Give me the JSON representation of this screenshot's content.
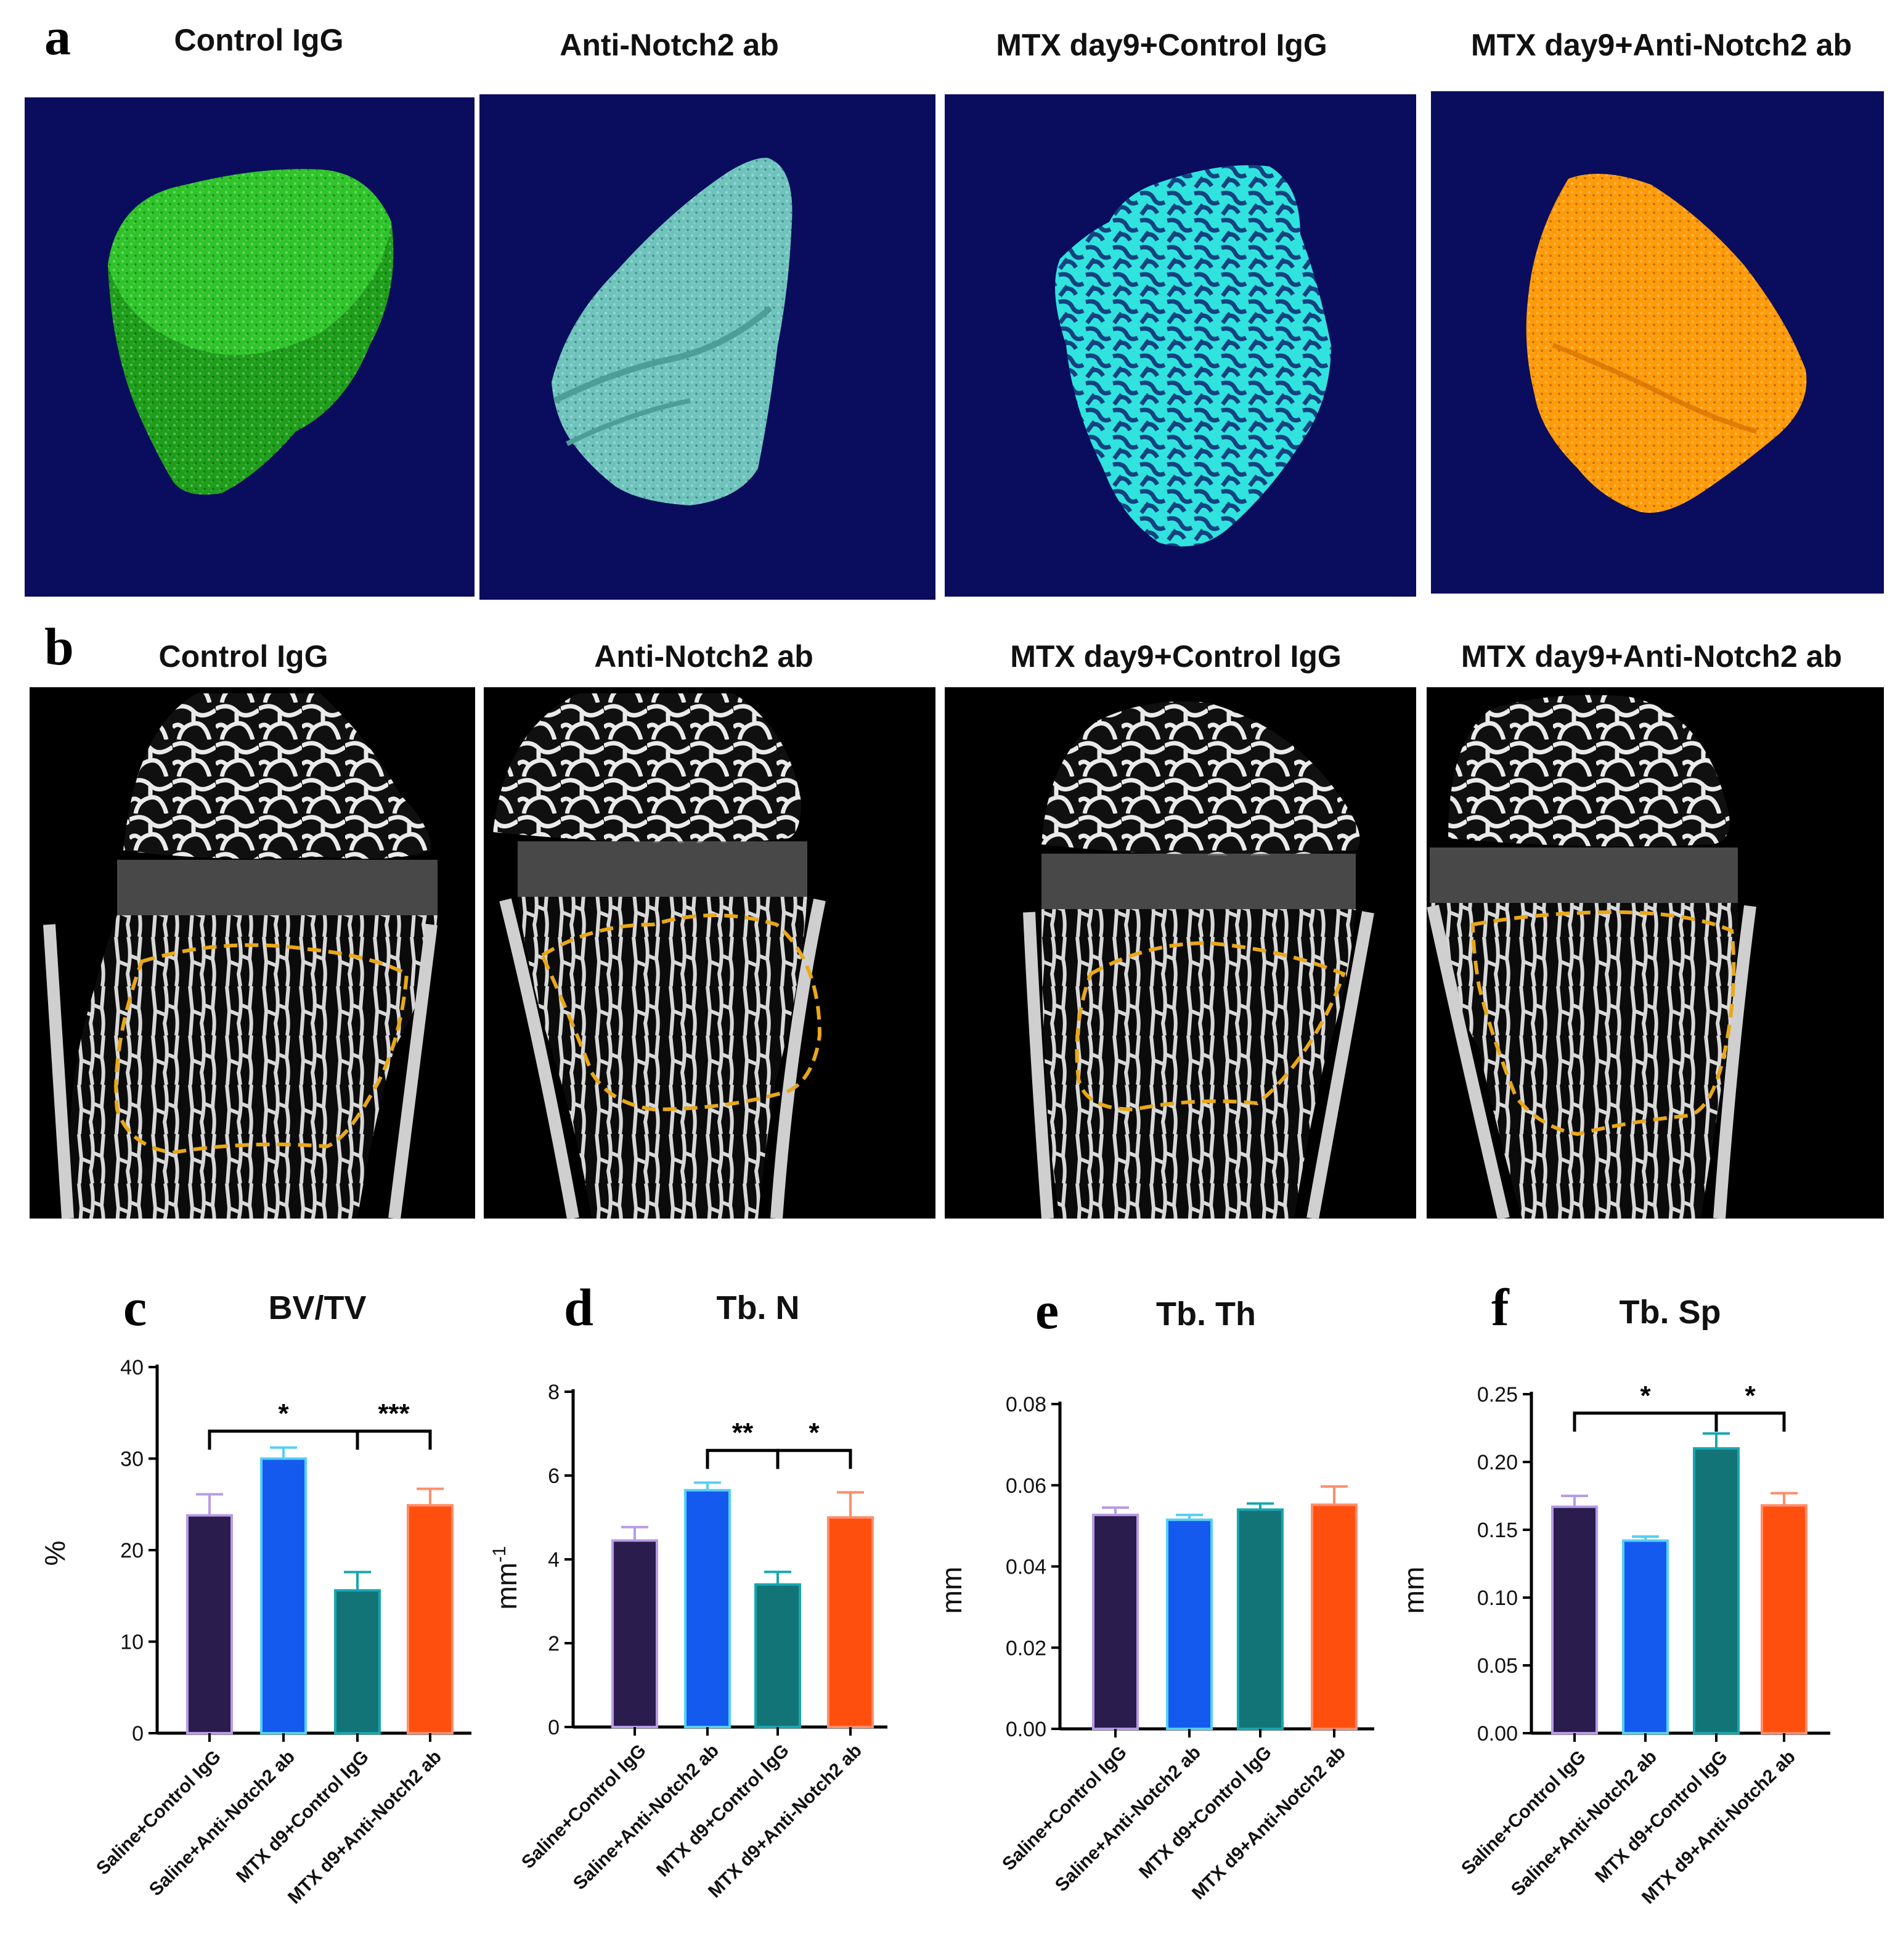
{
  "panel_a": {
    "letter": "a",
    "columns": [
      {
        "title": "Control IgG",
        "render_color": "#22b01e"
      },
      {
        "title": "Anti-Notch2 ab",
        "render_color": "#6cc6c0"
      },
      {
        "title": "MTX day9+Control IgG",
        "render_color": "#33e6e2"
      },
      {
        "title": "MTX day9+Anti-Notch2 ab",
        "render_color": "#ff9d0a"
      }
    ],
    "background": "#0a0c5e"
  },
  "panel_b": {
    "letter": "b",
    "columns": [
      {
        "title": "Control IgG"
      },
      {
        "title": "Anti-Notch2 ab"
      },
      {
        "title": "MTX day9+Control IgG"
      },
      {
        "title": "MTX day9+Anti-Notch2 ab"
      }
    ],
    "roi_color": "#e8a817"
  },
  "bar_colors": [
    "#2a1c4d",
    "#155aee",
    "#127477",
    "#ff4f0f"
  ],
  "error_colors": [
    "#b79be6",
    "#55cff5",
    "#17a6b0",
    "#ff8d6b"
  ],
  "chart_data": [
    {
      "letter": "c",
      "type": "bar",
      "title": "BV/TV",
      "ylabel": "%",
      "ylim": [
        0,
        40
      ],
      "yticks": [
        "0",
        "10",
        "20",
        "30",
        "40"
      ],
      "ytick_values": [
        0,
        10,
        20,
        30,
        40
      ],
      "categories": [
        "Saline+Control IgG",
        "Saline+Anti-Notch2 ab",
        "MTX d9+Control IgG",
        "MTX d9+Anti-Notch2 ab"
      ],
      "values": [
        23.8,
        30.0,
        15.6,
        24.9
      ],
      "errors": [
        2.3,
        1.2,
        2.0,
        1.8
      ],
      "significance": [
        {
          "from": 0,
          "to": 2,
          "label": "*",
          "y": 33
        },
        {
          "from": 2,
          "to": 3,
          "label": "***",
          "y": 33
        }
      ]
    },
    {
      "letter": "d",
      "type": "bar",
      "title": "Tb. N",
      "ylabel": "mm",
      "ylabel_sup": "-1",
      "ylim": [
        0,
        8
      ],
      "yticks": [
        "0",
        "2",
        "4",
        "6",
        "8"
      ],
      "ytick_values": [
        0,
        2,
        4,
        6,
        8
      ],
      "categories": [
        "Saline+Control IgG",
        "Saline+Anti-Notch2 ab",
        "MTX d9+Control IgG",
        "MTX d9+Anti-Notch2 ab"
      ],
      "values": [
        4.45,
        5.65,
        3.4,
        5.0
      ],
      "errors": [
        0.32,
        0.18,
        0.3,
        0.6
      ],
      "significance": [
        {
          "from": 1,
          "to": 2,
          "label": "**",
          "y": 6.6
        },
        {
          "from": 2,
          "to": 3,
          "label": "*",
          "y": 6.6
        }
      ]
    },
    {
      "letter": "e",
      "type": "bar",
      "title": "Tb. Th",
      "ylabel": "mm",
      "ylim": [
        0,
        0.08
      ],
      "yticks": [
        "0.00",
        "0.02",
        "0.04",
        "0.06",
        "0.08"
      ],
      "ytick_values": [
        0,
        0.02,
        0.04,
        0.06,
        0.08
      ],
      "categories": [
        "Saline+Control IgG",
        "Saline+Anti-Notch2 ab",
        "MTX d9+Control IgG",
        "MTX d9+Anti-Notch2 ab"
      ],
      "values": [
        0.0527,
        0.0515,
        0.054,
        0.0552
      ],
      "errors": [
        0.0018,
        0.0012,
        0.0015,
        0.0045
      ],
      "significance": []
    },
    {
      "letter": "f",
      "type": "bar",
      "title": "Tb. Sp",
      "ylabel": "mm",
      "ylim": [
        0,
        0.25
      ],
      "yticks": [
        "0.00",
        "0.05",
        "0.10",
        "0.15",
        "0.20",
        "0.25"
      ],
      "ytick_values": [
        0,
        0.05,
        0.1,
        0.15,
        0.2,
        0.25
      ],
      "categories": [
        "Saline+Control IgG",
        "Saline+Anti-Notch2 ab",
        "MTX d9+Control IgG",
        "MTX d9+Anti-Notch2 ab"
      ],
      "values": [
        0.167,
        0.142,
        0.21,
        0.168
      ],
      "errors": [
        0.008,
        0.003,
        0.011,
        0.009
      ],
      "significance": [
        {
          "from": 0,
          "to": 2,
          "label": "*",
          "y": 0.236
        },
        {
          "from": 2,
          "to": 3,
          "label": "*",
          "y": 0.236
        }
      ]
    }
  ]
}
